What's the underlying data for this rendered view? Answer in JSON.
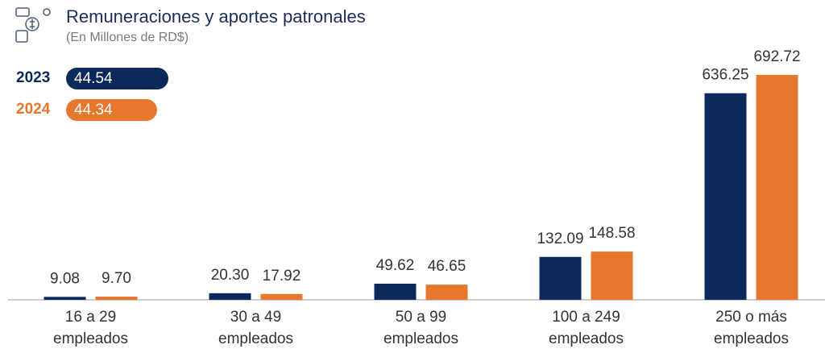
{
  "chart_data": {
    "type": "bar",
    "title": "Remuneraciones y aportes patronales",
    "subtitle": "(En Millones de RD$)",
    "categories": [
      "16 a 29\nempleados",
      "30 a 49\nempleados",
      "50 a 99\nempleados",
      "100 a 249\nempleados",
      "250 o más\nempleados"
    ],
    "series": [
      {
        "name": "2023",
        "color": "#0b2a5b",
        "total": 44.54,
        "values": [
          9.08,
          20.3,
          49.62,
          132.09,
          636.25
        ],
        "value_labels": [
          "9.08",
          "20.30",
          "49.62",
          "132.09",
          "636.25"
        ]
      },
      {
        "name": "2024",
        "color": "#e8772e",
        "total": 44.34,
        "values": [
          9.7,
          17.92,
          46.65,
          148.58,
          692.72
        ],
        "value_labels": [
          "9.70",
          "17.92",
          "46.65",
          "148.58",
          "692.72"
        ]
      }
    ],
    "ylim": [
      0,
      700
    ]
  }
}
